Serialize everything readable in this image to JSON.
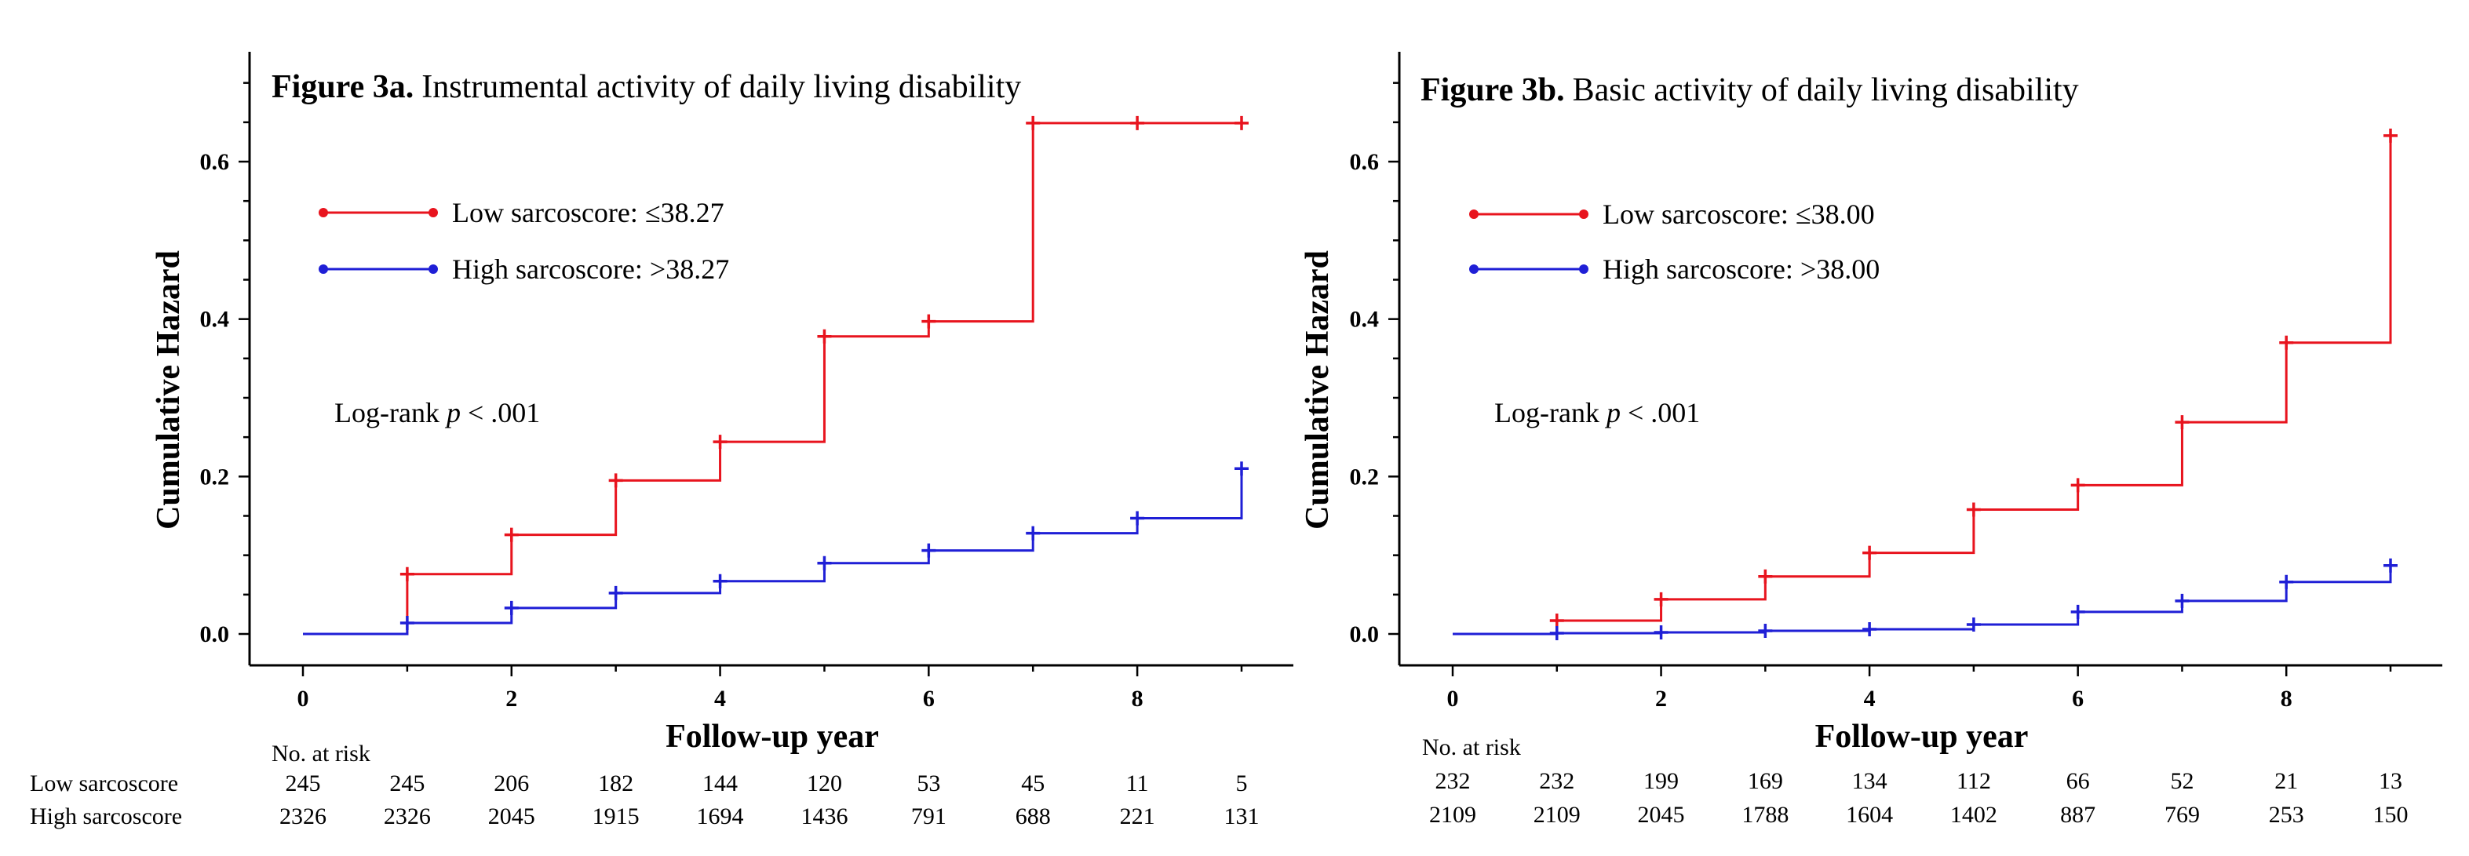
{
  "chart_data": [
    {
      "type": "line",
      "title_prefix": "Figure 3a.",
      "title": "Instrumental activity of daily living disability",
      "xlabel": "Follow-up year",
      "ylabel": "Cumulative Hazard",
      "xlim": [
        -0.5,
        9.5
      ],
      "ylim": [
        -0.04,
        0.74
      ],
      "xticks": [
        "0",
        "2",
        "4",
        "6",
        "8"
      ],
      "yticks": [
        "0.0",
        "0.2",
        "0.4",
        "0.6"
      ],
      "annotation": {
        "prefix": "Log-rank ",
        "italic": "p",
        "suffix": " < .001"
      },
      "series": [
        {
          "name": "Low sarcoscore: ≤38.27",
          "color": "#e8141e",
          "x": [
            0,
            1,
            2,
            3,
            4,
            5,
            6,
            7,
            8,
            9
          ],
          "values": [
            0.0,
            0.076,
            0.126,
            0.195,
            0.244,
            0.378,
            0.397,
            0.649,
            0.649,
            0.649
          ]
        },
        {
          "name": "High sarcoscore: >38.27",
          "color": "#1f1fd6",
          "x": [
            0,
            1,
            2,
            3,
            4,
            5,
            6,
            7,
            8,
            9
          ],
          "values": [
            0.0,
            0.014,
            0.033,
            0.052,
            0.067,
            0.09,
            0.106,
            0.128,
            0.147,
            0.21
          ]
        }
      ],
      "risk_table": {
        "header": "No. at risk",
        "rows": [
          {
            "label": "Low sarcoscore",
            "values": [
              "245",
              "245",
              "206",
              "182",
              "144",
              "120",
              "53",
              "45",
              "11",
              "5"
            ]
          },
          {
            "label": "High sarcoscore",
            "values": [
              "2326",
              "2326",
              "2045",
              "1915",
              "1694",
              "1436",
              "791",
              "688",
              "221",
              "131"
            ]
          }
        ]
      }
    },
    {
      "type": "line",
      "title_prefix": "Figure 3b.",
      "title": "Basic activity of daily living disability",
      "xlabel": "Follow-up year",
      "ylabel": "Cumulative Hazard",
      "xlim": [
        -0.5,
        9.5
      ],
      "ylim": [
        -0.04,
        0.74
      ],
      "xticks": [
        "0",
        "2",
        "4",
        "6",
        "8"
      ],
      "yticks": [
        "0.0",
        "0.2",
        "0.4",
        "0.6"
      ],
      "annotation": {
        "prefix": "Log-rank ",
        "italic": "p",
        "suffix": " < .001"
      },
      "series": [
        {
          "name": "Low sarcoscore: ≤38.00",
          "color": "#e8141e",
          "x": [
            0,
            1,
            2,
            3,
            4,
            5,
            6,
            7,
            8,
            9
          ],
          "values": [
            0.0,
            0.017,
            0.044,
            0.073,
            0.103,
            0.158,
            0.189,
            0.269,
            0.37,
            0.633
          ]
        },
        {
          "name": "High sarcoscore: >38.00",
          "color": "#1f1fd6",
          "x": [
            0,
            1,
            2,
            3,
            4,
            5,
            6,
            7,
            8,
            9
          ],
          "values": [
            0.0,
            0.001,
            0.002,
            0.004,
            0.006,
            0.012,
            0.028,
            0.042,
            0.066,
            0.087
          ]
        }
      ],
      "risk_table": {
        "header": "No. at risk",
        "rows": [
          {
            "label": "",
            "values": [
              "232",
              "232",
              "199",
              "169",
              "134",
              "112",
              "66",
              "52",
              "21",
              "13"
            ]
          },
          {
            "label": "",
            "values": [
              "2109",
              "2109",
              "2045",
              "1788",
              "1604",
              "1402",
              "887",
              "769",
              "253",
              "150"
            ]
          }
        ]
      }
    }
  ]
}
